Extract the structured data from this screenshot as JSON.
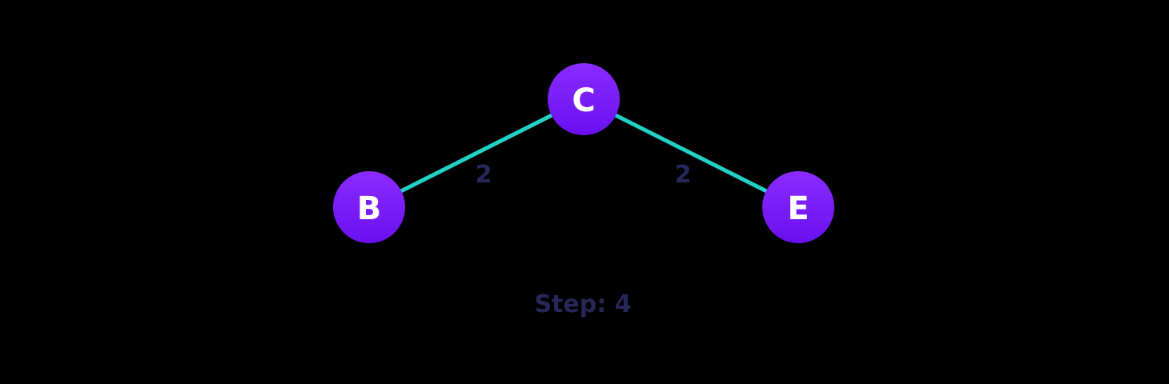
{
  "diagram": {
    "colors": {
      "background": "#000000",
      "edge": "#22d3c5",
      "node_top": "#8a2cff",
      "node_bottom": "#6a0ff0",
      "node_text": "#ffffff",
      "weight_text": "#27275a",
      "step_text": "#27275a"
    },
    "nodes": {
      "c": {
        "label": "C"
      },
      "b": {
        "label": "B"
      },
      "e": {
        "label": "E"
      }
    },
    "edges": {
      "c_b": {
        "from": "C",
        "to": "B",
        "weight": "2"
      },
      "c_e": {
        "from": "C",
        "to": "E",
        "weight": "2"
      }
    },
    "step_label": "Step: 4"
  }
}
